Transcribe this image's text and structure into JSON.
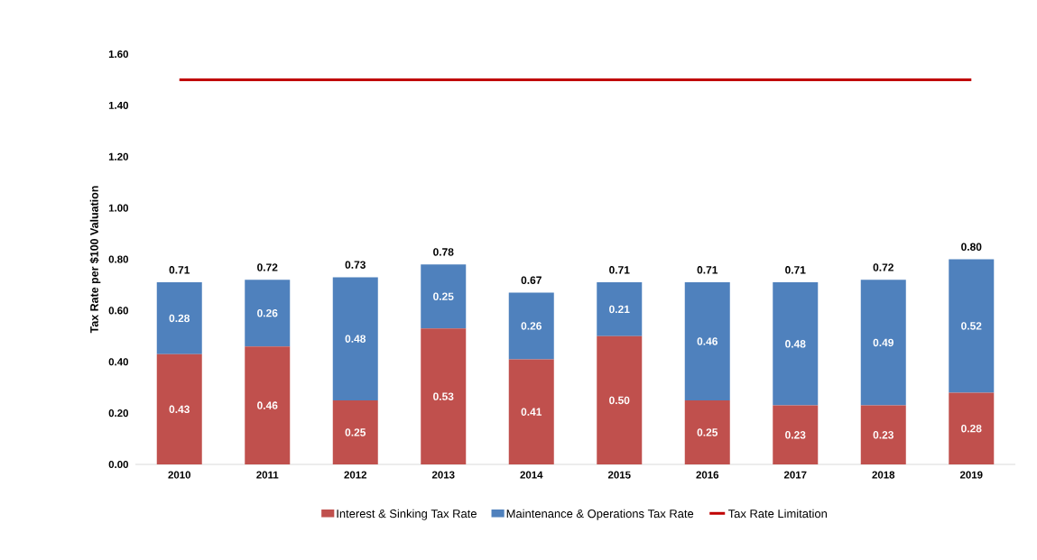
{
  "chart_data": {
    "type": "bar",
    "stacked": true,
    "ylabel": "Tax Rate per $100 Valuation",
    "categories": [
      "2010",
      "2011",
      "2012",
      "2013",
      "2014",
      "2015",
      "2016",
      "2017",
      "2018",
      "2019"
    ],
    "ylim": [
      0,
      1.6
    ],
    "yticks": [
      {
        "value": 0,
        "label": "0.00"
      },
      {
        "value": 0.2,
        "label": "0.20"
      },
      {
        "value": 0.4,
        "label": "0.40"
      },
      {
        "value": 0.6,
        "label": "0.60"
      },
      {
        "value": 0.8,
        "label": "0.80"
      },
      {
        "value": 1.0,
        "label": "1.00"
      },
      {
        "value": 1.2,
        "label": "1.20"
      },
      {
        "value": 1.4,
        "label": "1.40"
      },
      {
        "value": 1.6,
        "label": "1.60"
      }
    ],
    "legend": "bottom",
    "series": [
      {
        "name": "Interest & Sinking Tax Rate",
        "color": "#c0504d",
        "values": [
          0.43,
          0.46,
          0.25,
          0.53,
          0.41,
          0.5,
          0.25,
          0.23,
          0.23,
          0.28
        ],
        "value_labels": [
          "0.43",
          "0.46",
          "0.25",
          "0.53",
          "0.41",
          "0.50",
          "0.25",
          "0.23",
          "0.23",
          "0.28"
        ]
      },
      {
        "name": "Maintenance & Operations Tax Rate",
        "color": "#4f81bd",
        "values": [
          0.28,
          0.26,
          0.48,
          0.25,
          0.26,
          0.21,
          0.46,
          0.48,
          0.49,
          0.52
        ],
        "value_labels": [
          "0.28",
          "0.26",
          "0.48",
          "0.25",
          "0.26",
          "0.21",
          "0.46",
          "0.48",
          "0.49",
          "0.52"
        ]
      },
      {
        "name": "Tax Rate Limitation",
        "type": "line",
        "color": "#c00000",
        "values": [
          1.5,
          1.5,
          1.5,
          1.5,
          1.5,
          1.5,
          1.5,
          1.5,
          1.5,
          1.5
        ]
      }
    ],
    "totals": [
      "0.71",
      "0.72",
      "0.73",
      "0.78",
      "0.67",
      "0.71",
      "0.71",
      "0.71",
      "0.72",
      "0.80"
    ]
  }
}
